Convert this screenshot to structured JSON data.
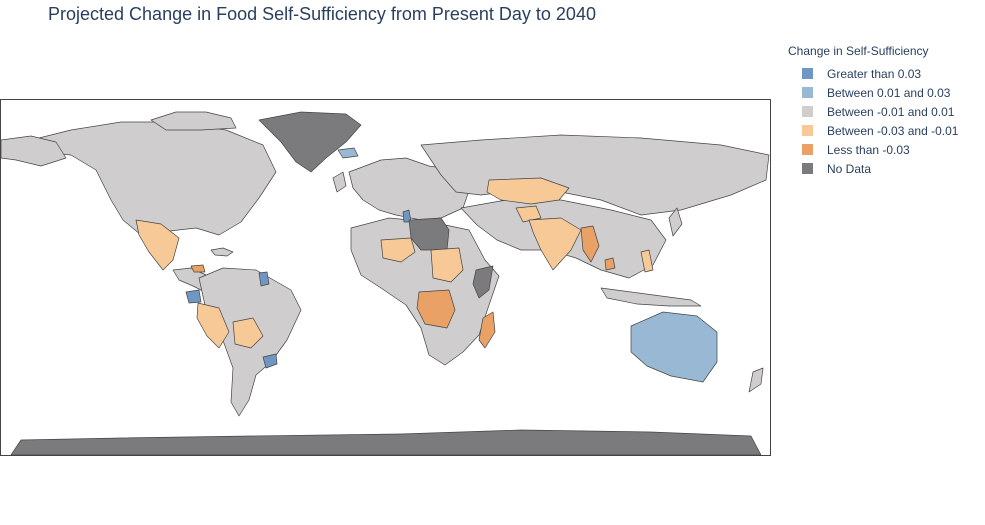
{
  "title": "Projected Change in Food Self-Sufficiency from Present Day to 2040",
  "legend": {
    "title": "Change in Self-Sufficiency",
    "items": [
      {
        "key": "gt003",
        "label": "Greater than 0.03",
        "color": "#7096c3"
      },
      {
        "key": "b001_003",
        "label": "Between 0.01 and 0.03",
        "color": "#98b8d3"
      },
      {
        "key": "bm001_001",
        "label": "Between -0.01 and 0.01",
        "color": "#cfcdcd"
      },
      {
        "key": "bm003_m001",
        "label": "Between -0.03 and -0.01",
        "color": "#f6c997"
      },
      {
        "key": "lt_m003",
        "label": "Less than -0.03",
        "color": "#eaa166"
      },
      {
        "key": "nodata",
        "label": "No Data",
        "color": "#7b7b7d"
      }
    ]
  },
  "map": {
    "projection": "equirectangular",
    "border_color": "#444444",
    "ocean_color": "#ffffff",
    "regions": [
      {
        "name": "Greenland",
        "category": "nodata"
      },
      {
        "name": "Antarctica",
        "category": "nodata"
      },
      {
        "name": "Libya",
        "category": "nodata"
      },
      {
        "name": "Somalia",
        "category": "nodata"
      },
      {
        "name": "Australia",
        "category": "b001_003"
      },
      {
        "name": "Iceland",
        "category": "b001_003"
      },
      {
        "name": "Uruguay",
        "category": "gt003"
      },
      {
        "name": "Ecuador",
        "category": "gt003"
      },
      {
        "name": "Tunisia",
        "category": "gt003"
      },
      {
        "name": "Guyana",
        "category": "gt003"
      },
      {
        "name": "Kazakhstan",
        "category": "bm003_m001"
      },
      {
        "name": "India",
        "category": "bm003_m001"
      },
      {
        "name": "Mexico",
        "category": "bm003_m001"
      },
      {
        "name": "Peru",
        "category": "bm003_m001"
      },
      {
        "name": "Bolivia",
        "category": "bm003_m001"
      },
      {
        "name": "Niger",
        "category": "bm003_m001"
      },
      {
        "name": "Sudan",
        "category": "bm003_m001"
      },
      {
        "name": "Afghanistan",
        "category": "bm003_m001"
      },
      {
        "name": "Philippines",
        "category": "bm003_m001"
      },
      {
        "name": "Myanmar",
        "category": "lt_m003"
      },
      {
        "name": "Madagascar",
        "category": "lt_m003"
      },
      {
        "name": "DR Congo",
        "category": "lt_m003"
      },
      {
        "name": "Cambodia",
        "category": "lt_m003"
      },
      {
        "name": "Honduras",
        "category": "lt_m003"
      }
    ]
  }
}
